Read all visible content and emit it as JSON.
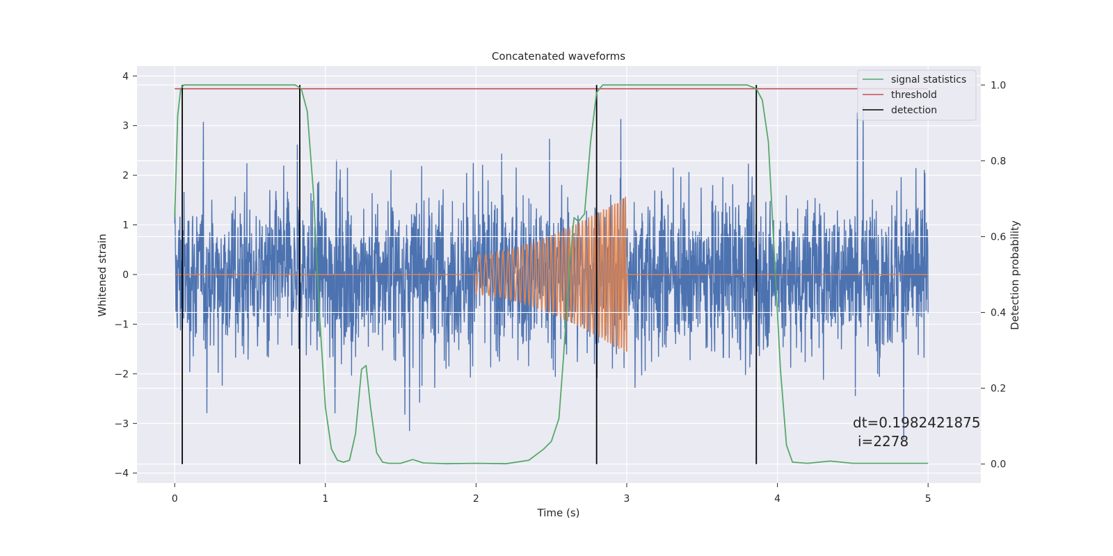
{
  "chart_data": {
    "type": "line",
    "title": "Concatenated waveforms",
    "xlabel": "Time (s)",
    "ylabel": "Whitened strain",
    "y2label": "Detection probability",
    "xlim": [
      -0.25,
      5.35
    ],
    "ylim": [
      -4.2,
      4.2
    ],
    "y2lim": [
      -0.05,
      1.05
    ],
    "xticks": [
      0,
      1,
      2,
      3,
      4,
      5
    ],
    "xtick_labels": [
      "0",
      "1",
      "2",
      "3",
      "4",
      "5"
    ],
    "yticks": [
      -4,
      -3,
      -2,
      -1,
      0,
      1,
      2,
      3,
      4
    ],
    "ytick_labels": [
      "−4",
      "−3",
      "−2",
      "−1",
      "0",
      "1",
      "2",
      "3",
      "4"
    ],
    "y2ticks": [
      0.0,
      0.2,
      0.4,
      0.6,
      0.8,
      1.0
    ],
    "y2tick_labels": [
      "0.0",
      "0.2",
      "0.4",
      "0.6",
      "0.8",
      "1.0"
    ],
    "grid": true,
    "legend_position": "top-right",
    "annotation": {
      "line1": "dt=0.1982421875",
      "line2": "i=2278"
    },
    "noise": {
      "x_range": [
        0,
        5
      ],
      "approx_amplitude_range": [
        -3.4,
        3.8
      ],
      "description_color": "#4c72b0"
    },
    "template": {
      "x_range": [
        0,
        5
      ],
      "chirp_start": 2.0,
      "chirp_end": 3.0,
      "amplitude_start": 0.4,
      "amplitude_end": 1.6,
      "cycles": 40
    },
    "series": [
      {
        "name": "signal statistics",
        "axis": "right",
        "color": "#55a868",
        "x": [
          0.0,
          0.02,
          0.04,
          0.06,
          0.1,
          0.2,
          0.4,
          0.6,
          0.75,
          0.8,
          0.84,
          0.88,
          0.92,
          0.96,
          1.0,
          1.04,
          1.08,
          1.12,
          1.16,
          1.2,
          1.24,
          1.27,
          1.3,
          1.34,
          1.38,
          1.42,
          1.5,
          1.58,
          1.65,
          1.8,
          2.0,
          2.2,
          2.35,
          2.45,
          2.5,
          2.55,
          2.58,
          2.62,
          2.65,
          2.68,
          2.72,
          2.76,
          2.8,
          2.84,
          2.88,
          2.95,
          3.2,
          3.6,
          3.8,
          3.86,
          3.9,
          3.94,
          3.98,
          4.02,
          4.06,
          4.1,
          4.2,
          4.35,
          4.5,
          5.0
        ],
        "y": [
          0.65,
          0.92,
          0.99,
          1.0,
          1.0,
          1.0,
          1.0,
          1.0,
          1.0,
          1.0,
          0.99,
          0.93,
          0.72,
          0.4,
          0.15,
          0.04,
          0.01,
          0.005,
          0.01,
          0.08,
          0.25,
          0.26,
          0.15,
          0.03,
          0.005,
          0.002,
          0.002,
          0.012,
          0.003,
          0.001,
          0.002,
          0.001,
          0.01,
          0.04,
          0.06,
          0.12,
          0.28,
          0.52,
          0.65,
          0.64,
          0.66,
          0.85,
          0.98,
          1.0,
          1.0,
          1.0,
          1.0,
          1.0,
          1.0,
          0.99,
          0.96,
          0.85,
          0.55,
          0.25,
          0.05,
          0.005,
          0.002,
          0.008,
          0.002,
          0.002
        ]
      },
      {
        "name": "threshold",
        "axis": "right",
        "color": "#c44e52",
        "x": [
          0,
          5
        ],
        "y": [
          0.99,
          0.99
        ]
      },
      {
        "name": "detection",
        "axis": "right",
        "color": "#000000",
        "x": [
          0.05,
          0.83,
          2.8,
          3.86
        ],
        "y_range": [
          0.0,
          1.0
        ]
      }
    ]
  }
}
